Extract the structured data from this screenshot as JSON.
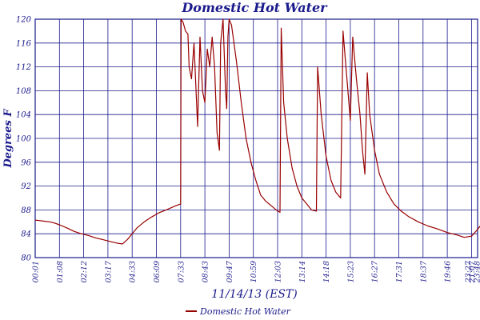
{
  "chart_data": {
    "type": "line",
    "title": "Domestic Hot Water",
    "xlabel": "11/14/13 (EST)",
    "ylabel": "Degrees F",
    "ylim": [
      80,
      120
    ],
    "yticks": [
      80,
      84,
      88,
      92,
      96,
      100,
      104,
      108,
      112,
      116,
      120
    ],
    "x_tick_labels": [
      "00:01",
      "01:08",
      "02:12",
      "03:17",
      "04:33",
      "06:09",
      "07:33",
      "08:43",
      "09:47",
      "10:59",
      "12:03",
      "13:14",
      "14:18",
      "15:23",
      "16:27",
      "17:31",
      "18:37",
      "19:46",
      "21:07",
      "22:15",
      "23:27",
      "23:48"
    ],
    "grid": true,
    "legend": {
      "position": "bottom-center",
      "label": "Domestic Hot Water"
    },
    "colors": {
      "series": "#990000",
      "grid": "#1a1a8c",
      "text": "#1a1a8c"
    },
    "series": [
      {
        "name": "Domestic Hot Water",
        "x_unit": "tick index",
        "points": [
          [
            0.0,
            86.3
          ],
          [
            0.2,
            86.2
          ],
          [
            0.4,
            86.1
          ],
          [
            0.6,
            86.0
          ],
          [
            0.8,
            85.8
          ],
          [
            1.0,
            85.5
          ],
          [
            1.3,
            85.0
          ],
          [
            1.6,
            84.4
          ],
          [
            1.9,
            84.0
          ],
          [
            2.2,
            83.7
          ],
          [
            2.5,
            83.3
          ],
          [
            2.8,
            83.0
          ],
          [
            3.1,
            82.7
          ],
          [
            3.4,
            82.4
          ],
          [
            3.6,
            82.3
          ],
          [
            3.8,
            83.0
          ],
          [
            4.0,
            84.0
          ],
          [
            4.2,
            85.0
          ],
          [
            4.5,
            86.0
          ],
          [
            4.8,
            86.8
          ],
          [
            5.1,
            87.5
          ],
          [
            5.4,
            88.0
          ],
          [
            5.8,
            88.7
          ],
          [
            6.0,
            89.0
          ],
          [
            6.02,
            120.0
          ],
          [
            6.1,
            119.5
          ],
          [
            6.2,
            118.0
          ],
          [
            6.3,
            117.5
          ],
          [
            6.35,
            112.0
          ],
          [
            6.45,
            110.0
          ],
          [
            6.55,
            116.0
          ],
          [
            6.7,
            102.0
          ],
          [
            6.8,
            117.0
          ],
          [
            6.9,
            108.0
          ],
          [
            7.0,
            106.0
          ],
          [
            7.1,
            115.0
          ],
          [
            7.2,
            112.0
          ],
          [
            7.3,
            117.0
          ],
          [
            7.4,
            112.0
          ],
          [
            7.5,
            101.0
          ],
          [
            7.6,
            98.0
          ],
          [
            7.65,
            116.0
          ],
          [
            7.75,
            120.0
          ],
          [
            7.85,
            108.0
          ],
          [
            7.9,
            105.0
          ],
          [
            7.95,
            117.0
          ],
          [
            8.0,
            120.0
          ],
          [
            8.1,
            119.0
          ],
          [
            8.3,
            113.0
          ],
          [
            8.5,
            106.0
          ],
          [
            8.7,
            100.0
          ],
          [
            8.9,
            96.0
          ],
          [
            9.1,
            93.0
          ],
          [
            9.3,
            90.5
          ],
          [
            9.5,
            89.5
          ],
          [
            9.8,
            88.5
          ],
          [
            10.0,
            87.8
          ],
          [
            10.1,
            87.6
          ],
          [
            10.15,
            118.5
          ],
          [
            10.25,
            106.0
          ],
          [
            10.4,
            100.0
          ],
          [
            10.6,
            95.0
          ],
          [
            10.8,
            92.0
          ],
          [
            11.0,
            90.0
          ],
          [
            11.2,
            89.0
          ],
          [
            11.4,
            88.0
          ],
          [
            11.6,
            87.8
          ],
          [
            11.65,
            112.0
          ],
          [
            11.8,
            104.0
          ],
          [
            12.0,
            97.0
          ],
          [
            12.2,
            93.0
          ],
          [
            12.4,
            91.0
          ],
          [
            12.6,
            90.0
          ],
          [
            12.7,
            118.0
          ],
          [
            12.8,
            113.0
          ],
          [
            12.9,
            108.0
          ],
          [
            13.0,
            103.0
          ],
          [
            13.1,
            117.0
          ],
          [
            13.25,
            110.0
          ],
          [
            13.4,
            104.0
          ],
          [
            13.5,
            98.0
          ],
          [
            13.6,
            94.0
          ],
          [
            13.7,
            111.0
          ],
          [
            13.8,
            104.0
          ],
          [
            14.0,
            98.0
          ],
          [
            14.2,
            94.0
          ],
          [
            14.5,
            91.0
          ],
          [
            14.8,
            89.0
          ],
          [
            15.1,
            87.8
          ],
          [
            15.4,
            86.9
          ],
          [
            15.8,
            86.0
          ],
          [
            16.2,
            85.3
          ],
          [
            16.6,
            84.8
          ],
          [
            17.0,
            84.2
          ],
          [
            17.4,
            83.8
          ],
          [
            17.7,
            83.4
          ],
          [
            18.0,
            83.6
          ],
          [
            18.2,
            84.5
          ],
          [
            18.4,
            85.5
          ],
          [
            18.5,
            86.0
          ],
          [
            18.55,
            117.5
          ],
          [
            18.7,
            108.0
          ],
          [
            18.9,
            100.0
          ],
          [
            19.1,
            95.0
          ],
          [
            19.3,
            92.0
          ],
          [
            19.5,
            90.0
          ],
          [
            19.8,
            89.0
          ],
          [
            20.1,
            88.7
          ],
          [
            20.4,
            89.3
          ],
          [
            20.7,
            89.1
          ],
          [
            21.0,
            88.7
          ],
          [
            21.4,
            88.3
          ],
          [
            21.8,
            88.0
          ],
          [
            22.2,
            87.8
          ],
          [
            22.6,
            87.5
          ],
          [
            23.0,
            87.2
          ],
          [
            23.4,
            86.8
          ],
          [
            23.7,
            86.4
          ]
        ]
      }
    ]
  }
}
